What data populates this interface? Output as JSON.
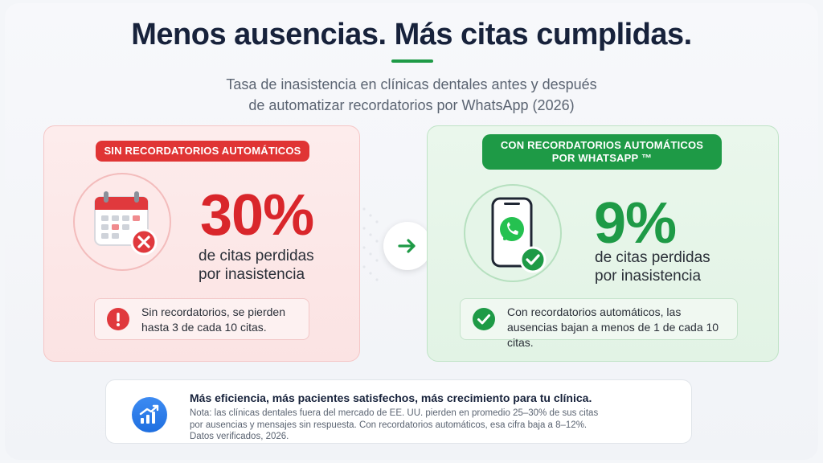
{
  "header": {
    "title": "Menos ausencias. Más citas cumplidas.",
    "subtitle_line1": "Tasa de inasistencia en clínicas dentales antes y después",
    "subtitle_line2": "de automatizar recordatorios por WhatsApp (2026)"
  },
  "before": {
    "badge": "SIN RECORDATORIOS AUTOMÁTICOS",
    "value": "30%",
    "label_line1": "de citas perdidas",
    "label_line2": "por inasistencia",
    "note_line1": "Sin recordatorios, se pierden",
    "note_line2": "hasta 3 de cada 10 citas.",
    "icon": "calendar-x-icon",
    "accent": "#d9262b"
  },
  "after": {
    "badge_line1": "CON RECORDATORIOS AUTOMÁTICOS",
    "badge_line2": "POR WHATSAPP ™",
    "value": "9%",
    "label_line1": "de citas perdidas",
    "label_line2": "por inasistencia",
    "note_line1": "Con recordatorios automáticos, las",
    "note_line2": "ausencias bajan a menos de 1 de cada 10 citas.",
    "icon": "whatsapp-phone-icon",
    "accent": "#1e9a46"
  },
  "footer": {
    "title": "Más eficiencia, más pacientes satisfechos, más crecimiento para tu clínica.",
    "note_line1": "Nota: las clínicas dentales fuera del mercado de EE. UU. pierden en promedio 25–30% de sus citas",
    "note_line2": "por ausencias y mensajes sin respuesta. Con recordatorios automáticos, esa cifra baja a 8–12%.",
    "note_line3": "Datos verificados, 2026.",
    "icon": "growth-chart-icon"
  }
}
